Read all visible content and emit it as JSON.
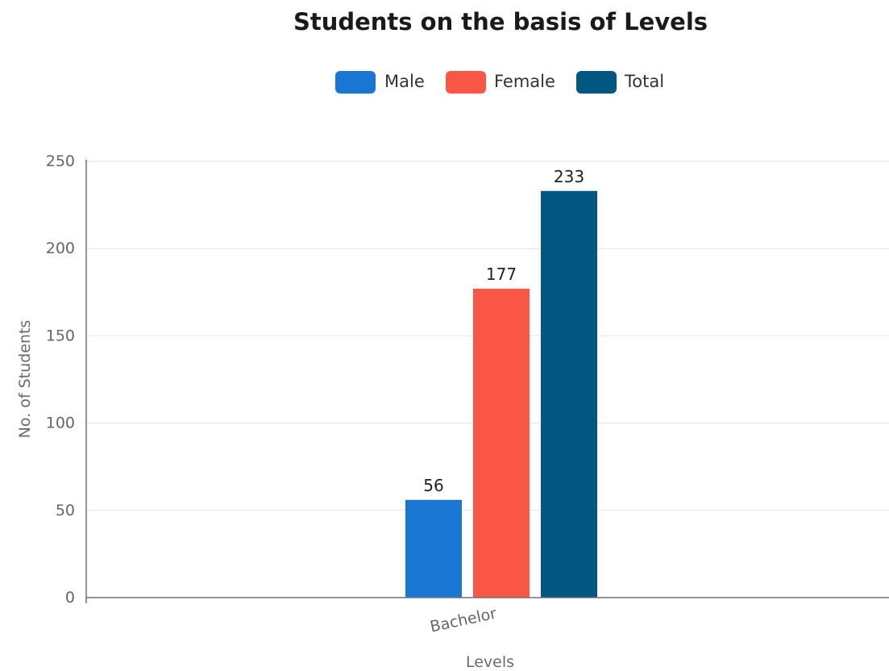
{
  "chart_data": {
    "type": "bar",
    "title": "Students on the basis of Levels",
    "xlabel": "Levels",
    "ylabel": "No. of Students",
    "categories": [
      "Bachelor"
    ],
    "series": [
      {
        "name": "Male",
        "values": [
          56
        ],
        "color": "#1976d2"
      },
      {
        "name": "Female",
        "values": [
          177
        ],
        "color": "#fa5646"
      },
      {
        "name": "Total",
        "values": [
          233
        ],
        "color": "#015781"
      }
    ],
    "ylim": [
      0,
      250
    ],
    "yticks": [
      0,
      50,
      100,
      150,
      200,
      250
    ],
    "grid": true,
    "legend_position": "top-center"
  }
}
